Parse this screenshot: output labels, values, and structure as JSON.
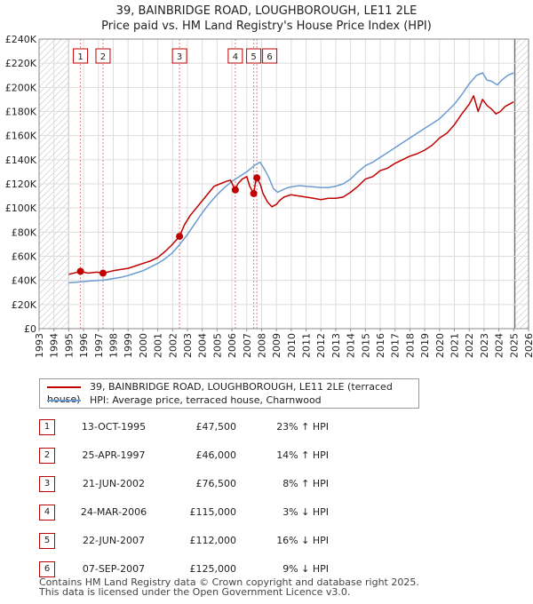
{
  "title": "39, BAINBRIDGE ROAD, LOUGHBOROUGH, LE11 2LE",
  "subtitle": "Price paid vs. HM Land Registry's House Price Index (HPI)",
  "colors": {
    "property": "#c00000",
    "hpi": "#6a9bd1",
    "grid": "#dddddd",
    "hatch": "#bbbbbb"
  },
  "chart_data": {
    "type": "line",
    "xlim": [
      1993,
      2026
    ],
    "ylim": [
      0,
      240000
    ],
    "hatched_before": 1995.0,
    "hatched_after": 2025.08,
    "x_ticks": [
      "1993",
      "1994",
      "1995",
      "1996",
      "1997",
      "1998",
      "1999",
      "2000",
      "2001",
      "2002",
      "2003",
      "2004",
      "2005",
      "2006",
      "2007",
      "2008",
      "2009",
      "2010",
      "2011",
      "2012",
      "2013",
      "2014",
      "2015",
      "2016",
      "2017",
      "2018",
      "2019",
      "2020",
      "2021",
      "2022",
      "2023",
      "2024",
      "2025",
      "2026"
    ],
    "y_ticks": [
      {
        "value": 0,
        "label": "£0"
      },
      {
        "value": 20000,
        "label": "£20K"
      },
      {
        "value": 40000,
        "label": "£40K"
      },
      {
        "value": 60000,
        "label": "£60K"
      },
      {
        "value": 80000,
        "label": "£80K"
      },
      {
        "value": 100000,
        "label": "£100K"
      },
      {
        "value": 120000,
        "label": "£120K"
      },
      {
        "value": 140000,
        "label": "£140K"
      },
      {
        "value": 160000,
        "label": "£160K"
      },
      {
        "value": 180000,
        "label": "£180K"
      },
      {
        "value": 200000,
        "label": "£200K"
      },
      {
        "value": 220000,
        "label": "£220K"
      },
      {
        "value": 240000,
        "label": "£240K"
      }
    ],
    "series": [
      {
        "name": "39, BAINBRIDGE ROAD, LOUGHBOROUGH, LE11 2LE (terraced house)",
        "color": "#c00000",
        "x": [
          1995.0,
          1995.5,
          1995.79,
          1996.3,
          1996.9,
          1997.31,
          1998.0,
          1998.5,
          1999.0,
          1999.5,
          2000.0,
          2000.5,
          2001.0,
          2001.5,
          2002.0,
          2002.47,
          2002.8,
          2003.2,
          2003.6,
          2004.0,
          2004.4,
          2004.8,
          2005.2,
          2005.6,
          2005.9,
          2006.23,
          2006.4,
          2006.7,
          2007.0,
          2007.2,
          2007.47,
          2007.6,
          2007.68,
          2007.9,
          2008.1,
          2008.4,
          2008.7,
          2009.0,
          2009.2,
          2009.5,
          2010.0,
          2010.5,
          2011.0,
          2011.5,
          2012.0,
          2012.5,
          2013.0,
          2013.5,
          2014.0,
          2014.5,
          2015.0,
          2015.5,
          2016.0,
          2016.5,
          2017.0,
          2017.5,
          2018.0,
          2018.5,
          2019.0,
          2019.5,
          2020.0,
          2020.5,
          2021.0,
          2021.5,
          2022.0,
          2022.3,
          2022.6,
          2022.9,
          2023.2,
          2023.5,
          2023.8,
          2024.1,
          2024.4,
          2024.7,
          2025.0
        ],
        "values": [
          45000,
          46500,
          47500,
          46000,
          46800,
          46000,
          48000,
          49000,
          50000,
          52000,
          54000,
          56000,
          59000,
          64000,
          70000,
          76500,
          86000,
          94000,
          100000,
          106000,
          112000,
          118000,
          120000,
          122000,
          123000,
          115000,
          120000,
          124000,
          126000,
          118000,
          112000,
          122000,
          125000,
          120000,
          112000,
          105000,
          101000,
          103000,
          106000,
          109000,
          111000,
          110000,
          109000,
          108000,
          107000,
          108000,
          108000,
          109000,
          113000,
          118000,
          124000,
          126000,
          131000,
          133000,
          137000,
          140000,
          143000,
          145000,
          148000,
          152000,
          158000,
          162000,
          169000,
          178000,
          186000,
          193000,
          180000,
          190000,
          185000,
          182000,
          178000,
          180000,
          184000,
          186000,
          188000
        ]
      },
      {
        "name": "HPI: Average price, terraced house, Charnwood",
        "color": "#6a9bd1",
        "x": [
          1995.0,
          1995.5,
          1996.0,
          1996.5,
          1997.0,
          1997.5,
          1998.0,
          1998.5,
          1999.0,
          1999.5,
          2000.0,
          2000.5,
          2001.0,
          2001.5,
          2002.0,
          2002.5,
          2003.0,
          2003.5,
          2004.0,
          2004.5,
          2005.0,
          2005.5,
          2006.0,
          2006.5,
          2007.0,
          2007.3,
          2007.6,
          2007.9,
          2008.2,
          2008.5,
          2008.8,
          2009.1,
          2009.4,
          2009.8,
          2010.2,
          2010.6,
          2011.0,
          2011.5,
          2012.0,
          2012.5,
          2013.0,
          2013.5,
          2014.0,
          2014.5,
          2015.0,
          2015.5,
          2016.0,
          2016.5,
          2017.0,
          2017.5,
          2018.0,
          2018.5,
          2019.0,
          2019.5,
          2020.0,
          2020.5,
          2021.0,
          2021.5,
          2022.0,
          2022.5,
          2022.9,
          2023.2,
          2023.5,
          2023.9,
          2024.2,
          2024.6,
          2025.0
        ],
        "values": [
          38000,
          38500,
          39000,
          39500,
          40000,
          40500,
          41500,
          42500,
          44000,
          46000,
          48000,
          51000,
          54000,
          58000,
          63000,
          70000,
          78000,
          87000,
          96000,
          104000,
          111000,
          117000,
          122000,
          126000,
          130000,
          133000,
          136000,
          138000,
          132000,
          125000,
          116000,
          113000,
          115000,
          117000,
          118000,
          118500,
          118000,
          117500,
          117000,
          117000,
          118000,
          120000,
          124000,
          130000,
          135000,
          138000,
          142000,
          146000,
          150000,
          154000,
          158000,
          162000,
          166000,
          170000,
          174000,
          180000,
          186000,
          194000,
          203000,
          210000,
          212000,
          206000,
          205000,
          202000,
          206000,
          210000,
          212000
        ]
      }
    ],
    "sales": [
      {
        "label": "1",
        "x": 1995.79,
        "value": 47500
      },
      {
        "label": "2",
        "x": 1997.31,
        "value": 46000
      },
      {
        "label": "3",
        "x": 2002.47,
        "value": 76500
      },
      {
        "label": "4",
        "x": 2006.23,
        "value": 115000
      },
      {
        "label": "5",
        "x": 2007.47,
        "value": 112000
      },
      {
        "label": "6",
        "x": 2007.68,
        "value": 125000
      }
    ]
  },
  "legend": {
    "property_label": "39, BAINBRIDGE ROAD, LOUGHBOROUGH, LE11 2LE (terraced house)",
    "hpi_label": "HPI: Average price, terraced house, Charnwood"
  },
  "sales_table": [
    {
      "num": "1",
      "date": "13-OCT-1995",
      "price": "£47,500",
      "hpi": "23% ↑ HPI"
    },
    {
      "num": "2",
      "date": "25-APR-1997",
      "price": "£46,000",
      "hpi": "14% ↑ HPI"
    },
    {
      "num": "3",
      "date": "21-JUN-2002",
      "price": "£76,500",
      "hpi": "8% ↑ HPI"
    },
    {
      "num": "4",
      "date": "24-MAR-2006",
      "price": "£115,000",
      "hpi": "3% ↓ HPI"
    },
    {
      "num": "5",
      "date": "22-JUN-2007",
      "price": "£112,000",
      "hpi": "16% ↓ HPI"
    },
    {
      "num": "6",
      "date": "07-SEP-2007",
      "price": "£125,000",
      "hpi": "9% ↓ HPI"
    }
  ],
  "footer": {
    "line1": "Contains HM Land Registry data © Crown copyright and database right 2025.",
    "line2": "This data is licensed under the Open Government Licence v3.0."
  }
}
